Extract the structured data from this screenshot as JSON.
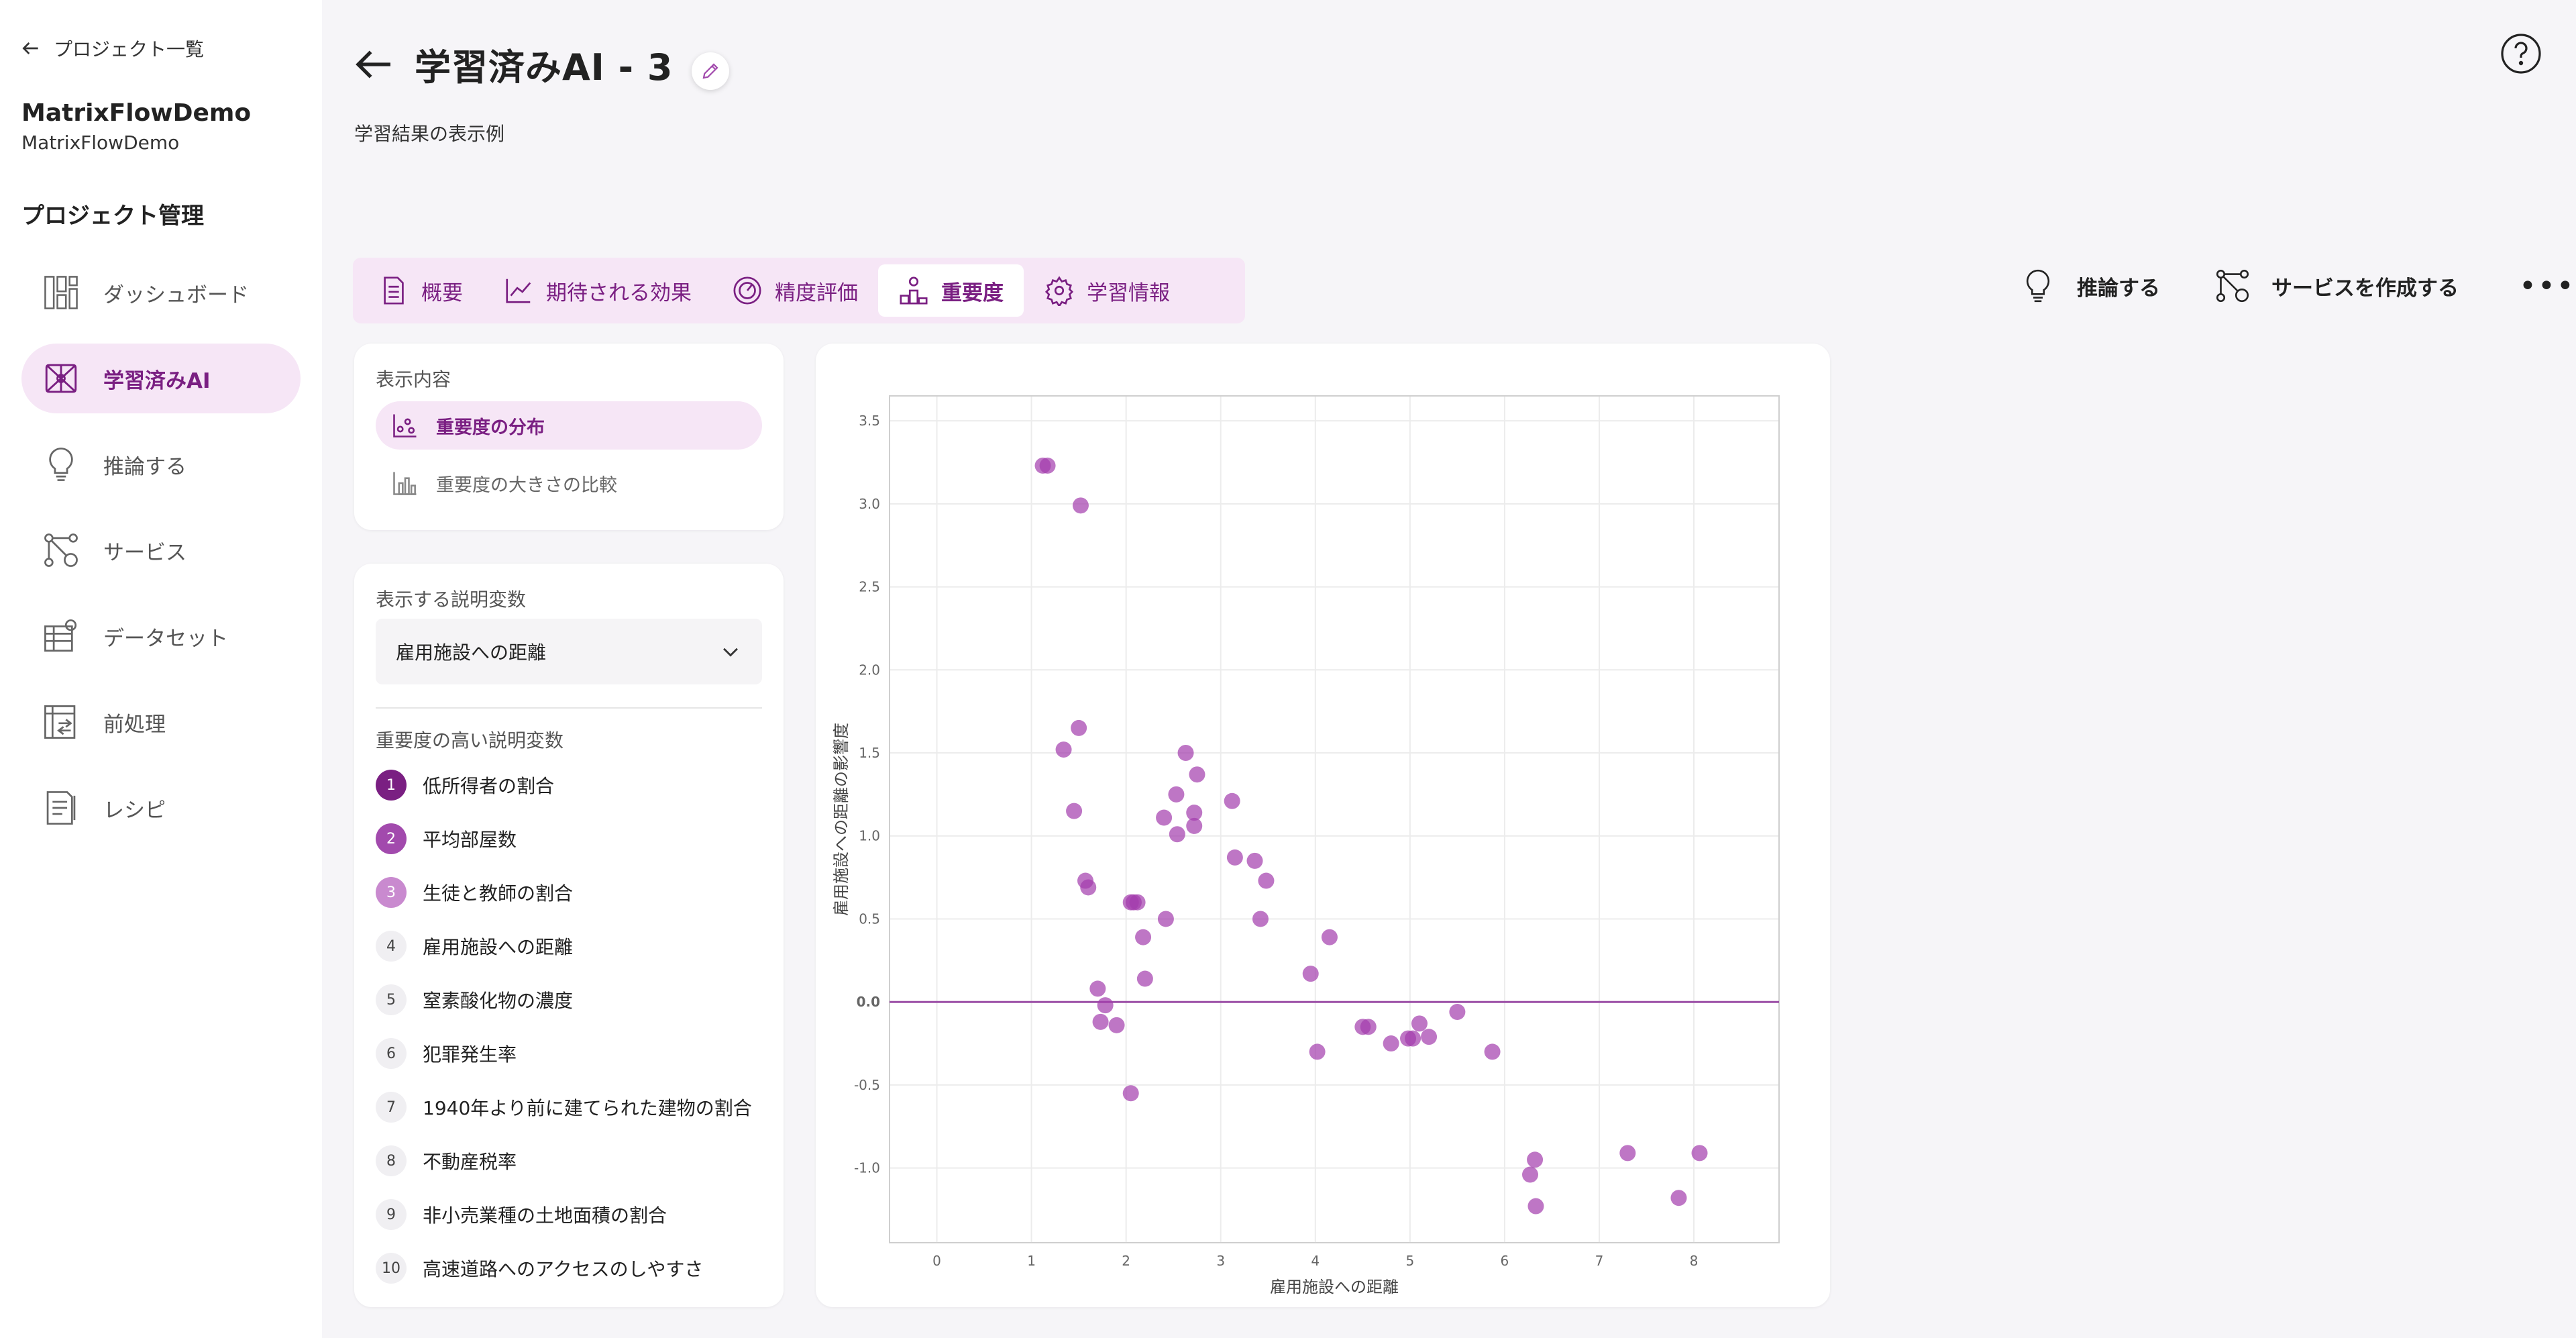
{
  "sidebar": {
    "back_label": "プロジェクト一覧",
    "org_name": "MatrixFlowDemo",
    "org_sub": "MatrixFlowDemo",
    "section_title": "プロジェクト管理",
    "items": [
      {
        "label": "ダッシュボード",
        "icon": "dashboard-icon"
      },
      {
        "label": "学習済みAI",
        "icon": "trained-ai-icon"
      },
      {
        "label": "推論する",
        "icon": "lightbulb-icon"
      },
      {
        "label": "サービス",
        "icon": "service-icon"
      },
      {
        "label": "データセット",
        "icon": "dataset-icon"
      },
      {
        "label": "前処理",
        "icon": "preprocess-icon"
      },
      {
        "label": "レシピ",
        "icon": "recipe-icon"
      }
    ]
  },
  "header": {
    "title": "学習済みAI - 3",
    "subtitle": "学習結果の表示例"
  },
  "tabs": [
    {
      "label": "概要",
      "icon": "document-icon"
    },
    {
      "label": "期待される効果",
      "icon": "line-chart-icon"
    },
    {
      "label": "精度評価",
      "icon": "gauge-icon"
    },
    {
      "label": "重要度",
      "icon": "importance-icon"
    },
    {
      "label": "学習情報",
      "icon": "gear-icon"
    }
  ],
  "actions": {
    "infer_label": "推論する",
    "create_service_label": "サービスを作成する"
  },
  "display": {
    "label": "表示内容",
    "modes": [
      "重要度の分布",
      "重要度の大きさの比較"
    ]
  },
  "variables": {
    "label": "表示する説明変数",
    "selected": "雇用施設への距離",
    "ranking_label": "重要度の高い説明変数",
    "ranking": [
      {
        "rank": "1",
        "name": "低所得者の割合"
      },
      {
        "rank": "2",
        "name": "平均部屋数"
      },
      {
        "rank": "3",
        "name": "生徒と教師の割合"
      },
      {
        "rank": "4",
        "name": "雇用施設への距離"
      },
      {
        "rank": "5",
        "name": "窒素酸化物の濃度"
      },
      {
        "rank": "6",
        "name": "犯罪発生率"
      },
      {
        "rank": "7",
        "name": "1940年より前に建てられた建物の割合"
      },
      {
        "rank": "8",
        "name": "不動産税率"
      },
      {
        "rank": "9",
        "name": "非小売業種の土地面積の割合"
      },
      {
        "rank": "10",
        "name": "高速道路へのアクセスのしやすさ"
      }
    ],
    "badge_colors": [
      "#7a1f82",
      "#a24aad",
      "#c98acf"
    ]
  },
  "chart_data": {
    "type": "scatter",
    "xlabel": "雇用施設への距離",
    "ylabel": "雇用施設への距離の影響度",
    "xlim": [
      -0.5,
      8.9
    ],
    "ylim": [
      -1.45,
      3.65
    ],
    "x_ticks": [
      "0",
      "1",
      "2",
      "3",
      "4",
      "5",
      "6",
      "7",
      "8"
    ],
    "y_ticks": [
      "-1.0",
      "-0.5",
      "0.0",
      "0.5",
      "1.0",
      "1.5",
      "2.0",
      "2.5",
      "3.0",
      "3.5"
    ],
    "reference_line_y": 0,
    "point_color": "#a33cad",
    "points": [
      [
        1.12,
        3.23
      ],
      [
        1.17,
        3.23
      ],
      [
        1.52,
        2.99
      ],
      [
        1.5,
        1.65
      ],
      [
        1.34,
        1.52
      ],
      [
        1.45,
        1.15
      ],
      [
        1.57,
        0.73
      ],
      [
        1.6,
        0.69
      ],
      [
        2.05,
        0.6
      ],
      [
        2.12,
        0.6
      ],
      [
        2.08,
        0.6
      ],
      [
        2.18,
        0.39
      ],
      [
        2.2,
        0.14
      ],
      [
        1.7,
        0.08
      ],
      [
        1.78,
        -0.02
      ],
      [
        1.73,
        -0.12
      ],
      [
        1.9,
        -0.14
      ],
      [
        2.05,
        -0.55
      ],
      [
        2.42,
        0.5
      ],
      [
        2.63,
        1.5
      ],
      [
        2.53,
        1.25
      ],
      [
        2.4,
        1.11
      ],
      [
        2.75,
        1.37
      ],
      [
        2.72,
        1.14
      ],
      [
        2.72,
        1.06
      ],
      [
        2.54,
        1.01
      ],
      [
        3.12,
        1.21
      ],
      [
        3.15,
        0.87
      ],
      [
        3.36,
        0.85
      ],
      [
        3.48,
        0.73
      ],
      [
        3.42,
        0.5
      ],
      [
        4.15,
        0.39
      ],
      [
        3.95,
        0.17
      ],
      [
        4.02,
        -0.3
      ],
      [
        4.5,
        -0.15
      ],
      [
        4.56,
        -0.15
      ],
      [
        4.8,
        -0.25
      ],
      [
        4.98,
        -0.22
      ],
      [
        5.03,
        -0.22
      ],
      [
        5.1,
        -0.13
      ],
      [
        5.2,
        -0.21
      ],
      [
        5.5,
        -0.06
      ],
      [
        5.87,
        -0.3
      ],
      [
        6.32,
        -0.95
      ],
      [
        6.27,
        -1.04
      ],
      [
        6.33,
        -1.23
      ],
      [
        7.3,
        -0.91
      ],
      [
        7.84,
        -1.18
      ],
      [
        8.06,
        -0.91
      ]
    ]
  }
}
